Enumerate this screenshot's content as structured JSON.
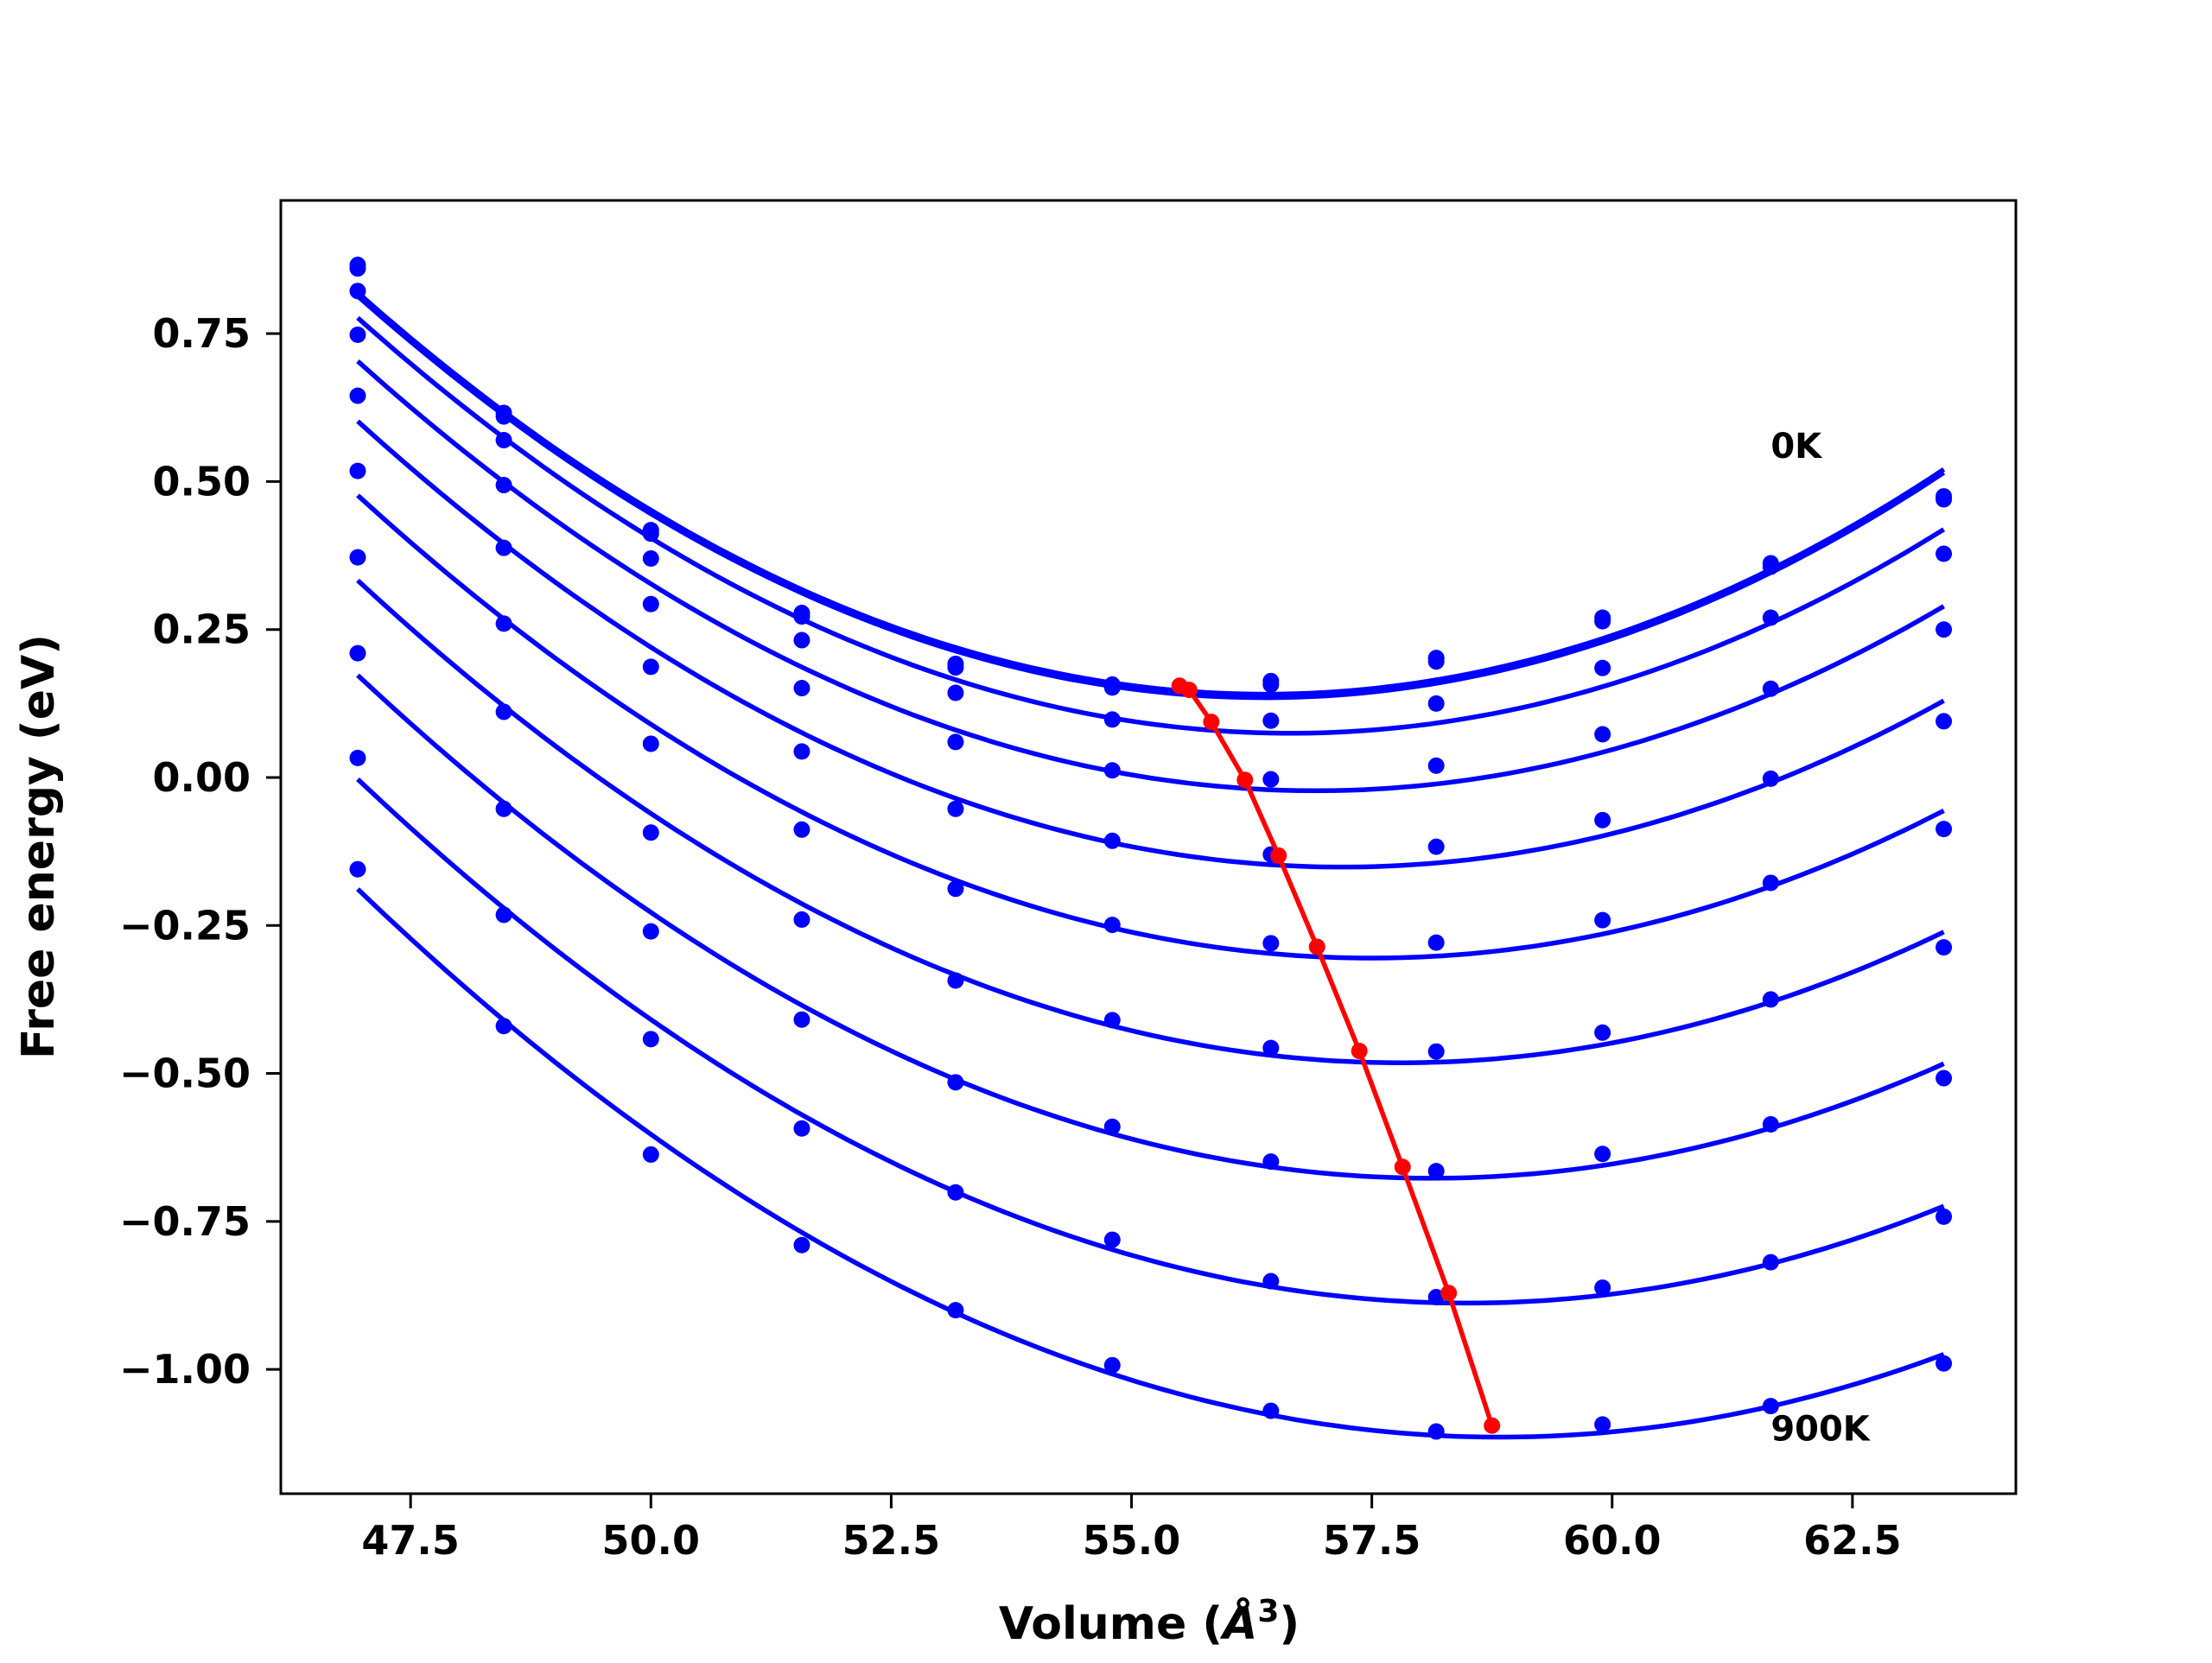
{
  "chart_data": {
    "type": "line",
    "title": "",
    "xlabel": "Volume (",
    "xlabel_unit": "Å",
    "xlabel_exp": "3",
    "xlabel_close": ")",
    "ylabel": "Free energy (eV)",
    "xlim": [
      46.15,
      64.2
    ],
    "ylim": [
      -1.21,
      0.975
    ],
    "xticks": [
      47.5,
      50.0,
      52.5,
      55.0,
      57.5,
      60.0,
      62.5
    ],
    "xtick_labels": [
      "47.5",
      "50.0",
      "52.5",
      "55.0",
      "57.5",
      "60.0",
      "62.5"
    ],
    "yticks": [
      0.75,
      0.5,
      0.25,
      0.0,
      -0.25,
      -0.5,
      -0.75,
      -1.0
    ],
    "ytick_labels": [
      "0.75",
      "0.50",
      "0.25",
      "0.00",
      "−0.25",
      "−0.50",
      "−0.75",
      "−1.00"
    ],
    "x": [
      46.95,
      48.47,
      50.0,
      51.57,
      53.17,
      54.8,
      56.45,
      58.17,
      59.9,
      61.65,
      63.45
    ],
    "annotations": [
      {
        "text": "0K",
        "x": 61.65,
        "y": 0.54
      },
      {
        "text": "900K",
        "x": 61.65,
        "y": -1.12
      }
    ],
    "series_color": "#0000ff",
    "series": [
      {
        "values": [
          0.866,
          0.616,
          0.418,
          0.278,
          0.192,
          0.157,
          0.163,
          0.202,
          0.27,
          0.362,
          0.475
        ],
        "min_x": 55.5,
        "min_y": 0.155
      },
      {
        "values": [
          0.86,
          0.61,
          0.412,
          0.272,
          0.186,
          0.152,
          0.157,
          0.196,
          0.264,
          0.356,
          0.47
        ],
        "min_x": 55.6,
        "min_y": 0.148
      },
      {
        "values": [
          0.822,
          0.57,
          0.37,
          0.232,
          0.143,
          0.098,
          0.096,
          0.125,
          0.185,
          0.27,
          0.378
        ],
        "min_x": 55.83,
        "min_y": 0.094
      },
      {
        "values": [
          0.748,
          0.494,
          0.293,
          0.151,
          0.06,
          0.012,
          -0.003,
          0.02,
          0.073,
          0.15,
          0.25
        ],
        "min_x": 56.18,
        "min_y": -0.004
      },
      {
        "values": [
          0.645,
          0.388,
          0.187,
          0.044,
          -0.053,
          -0.107,
          -0.13,
          -0.117,
          -0.072,
          -0.002,
          0.095
        ],
        "min_x": 56.53,
        "min_y": -0.132
      },
      {
        "values": [
          0.518,
          0.26,
          0.057,
          -0.088,
          -0.188,
          -0.249,
          -0.28,
          -0.279,
          -0.241,
          -0.178,
          -0.087
        ],
        "min_x": 56.93,
        "min_y": -0.286
      },
      {
        "values": [
          0.372,
          0.111,
          -0.093,
          -0.24,
          -0.343,
          -0.41,
          -0.457,
          -0.463,
          -0.431,
          -0.375,
          -0.287
        ],
        "min_x": 57.37,
        "min_y": -0.462
      },
      {
        "values": [
          0.21,
          -0.053,
          -0.26,
          -0.409,
          -0.515,
          -0.59,
          -0.649,
          -0.665,
          -0.636,
          -0.586,
          -0.508
        ],
        "min_x": 57.82,
        "min_y": -0.658
      },
      {
        "values": [
          0.033,
          -0.232,
          -0.442,
          -0.593,
          -0.701,
          -0.781,
          -0.851,
          -0.878,
          -0.862,
          -0.819,
          -0.742
        ],
        "min_x": 58.3,
        "min_y": -0.871
      },
      {
        "values": [
          -0.155,
          -0.42,
          -0.637,
          -0.79,
          -0.9,
          -0.993,
          -1.07,
          -1.105,
          -1.093,
          -1.062,
          -0.99
        ],
        "min_x": 58.75,
        "min_y": -1.095
      }
    ],
    "minima_line": {
      "color": "#ff0000",
      "x": [
        55.5,
        55.6,
        55.83,
        56.18,
        56.53,
        56.93,
        57.37,
        57.82,
        58.3,
        58.75
      ],
      "y": [
        0.155,
        0.148,
        0.094,
        -0.004,
        -0.132,
        -0.286,
        -0.462,
        -0.658,
        -0.871,
        -1.095
      ]
    },
    "grid": false,
    "legend": "none"
  }
}
